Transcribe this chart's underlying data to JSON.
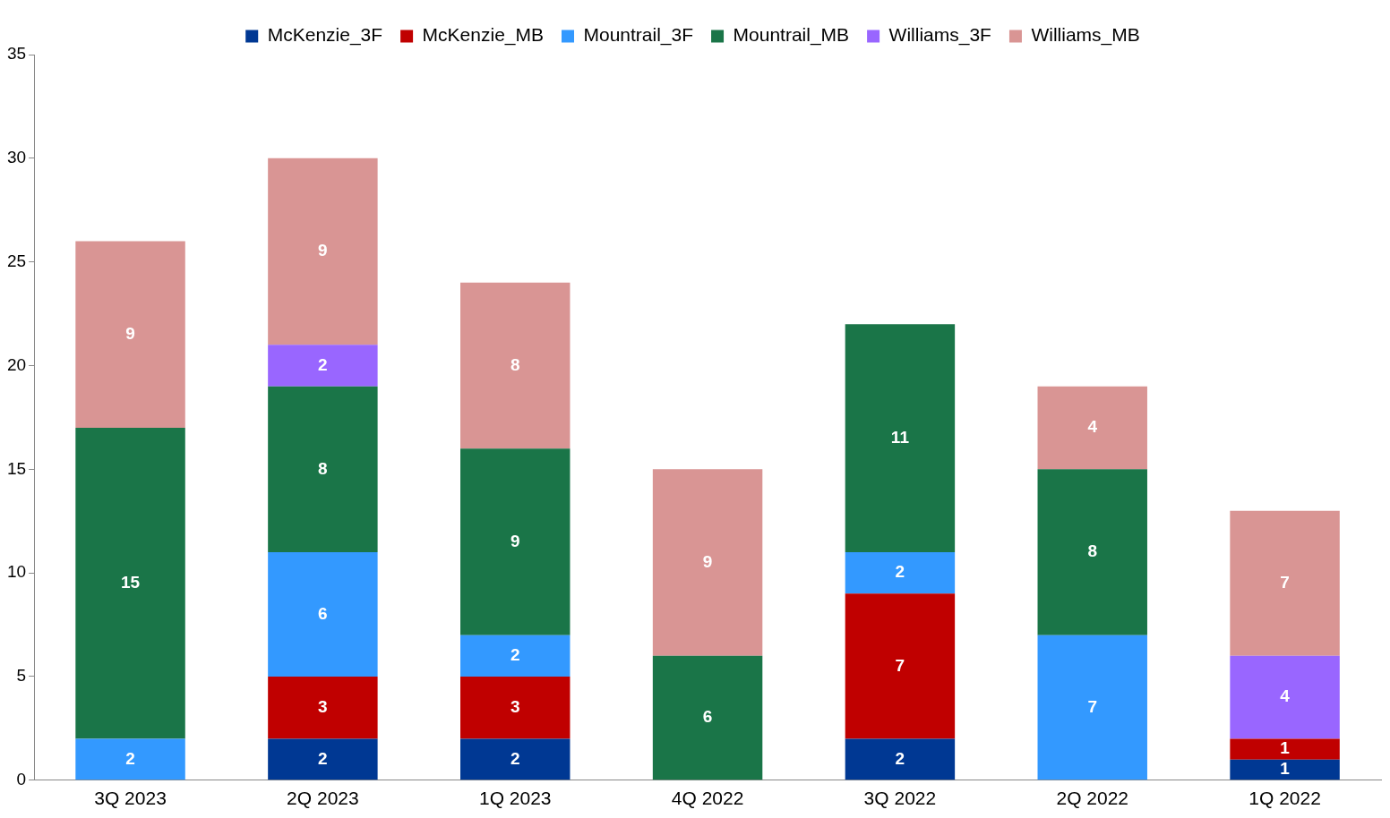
{
  "chart_data": {
    "type": "bar",
    "stacked": true,
    "categories": [
      "3Q 2023",
      "2Q 2023",
      "1Q 2023",
      "4Q 2022",
      "3Q 2022",
      "2Q 2022",
      "1Q 2022"
    ],
    "series": [
      {
        "name": "McKenzie_3F",
        "color": "#003893",
        "values": [
          null,
          2,
          2,
          null,
          2,
          null,
          1
        ]
      },
      {
        "name": "McKenzie_MB",
        "color": "#c00000",
        "values": [
          null,
          3,
          3,
          null,
          7,
          null,
          1
        ]
      },
      {
        "name": "Mountrail_3F",
        "color": "#3399ff",
        "values": [
          2,
          6,
          2,
          null,
          2,
          7,
          null
        ]
      },
      {
        "name": "Mountrail_MB",
        "color": "#1a7548",
        "values": [
          15,
          8,
          9,
          6,
          11,
          8,
          null
        ]
      },
      {
        "name": "Williams_3F",
        "color": "#9966ff",
        "values": [
          null,
          2,
          null,
          null,
          null,
          null,
          4
        ]
      },
      {
        "name": "Williams_MB",
        "color": "#d99594",
        "values": [
          9,
          9,
          8,
          9,
          null,
          4,
          7
        ]
      }
    ],
    "ylim": [
      0,
      35
    ],
    "yticks": [
      0,
      5,
      10,
      15,
      20,
      25,
      30,
      35
    ],
    "grid": false,
    "legend": "top",
    "data_labels": true
  }
}
